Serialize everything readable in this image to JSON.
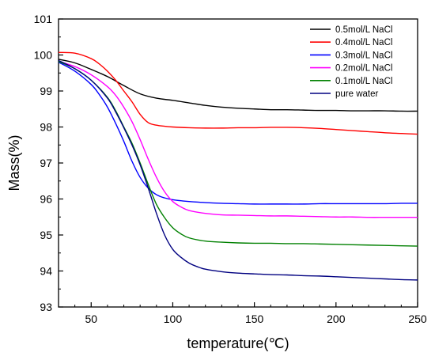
{
  "chart_data": {
    "type": "line",
    "xlabel": "temperature(℃)",
    "ylabel": "Mass(%)",
    "xlim": [
      30,
      250
    ],
    "ylim": [
      93,
      101
    ],
    "xticks": [
      50,
      100,
      150,
      200,
      250
    ],
    "yticks": [
      93,
      94,
      95,
      96,
      97,
      98,
      99,
      100,
      101
    ],
    "grid": false,
    "legend_position": "top-right",
    "series": [
      {
        "name": "0.5mol/L NaCl",
        "color": "#000000",
        "x": [
          30,
          40,
          50,
          60,
          70,
          80,
          90,
          100,
          110,
          120,
          130,
          140,
          150,
          160,
          170,
          180,
          190,
          200,
          210,
          220,
          230,
          240,
          250
        ],
        "y": [
          99.88,
          99.78,
          99.6,
          99.4,
          99.15,
          98.92,
          98.8,
          98.74,
          98.67,
          98.6,
          98.55,
          98.52,
          98.5,
          98.48,
          98.48,
          98.47,
          98.46,
          98.46,
          98.45,
          98.45,
          98.45,
          98.44,
          98.44
        ]
      },
      {
        "name": "0.4mol/L NaCl",
        "color": "#ff0000",
        "x": [
          30,
          40,
          50,
          55,
          60,
          65,
          70,
          75,
          80,
          85,
          90,
          95,
          100,
          110,
          120,
          130,
          140,
          150,
          160,
          170,
          180,
          190,
          200,
          210,
          220,
          230,
          240,
          250
        ],
        "y": [
          100.07,
          100.05,
          99.9,
          99.75,
          99.55,
          99.3,
          99.0,
          98.7,
          98.35,
          98.12,
          98.05,
          98.02,
          98.0,
          97.98,
          97.97,
          97.97,
          97.98,
          97.98,
          97.99,
          97.99,
          97.98,
          97.96,
          97.93,
          97.9,
          97.87,
          97.84,
          97.82,
          97.8
        ]
      },
      {
        "name": "0.3mol/L NaCl",
        "color": "#0000ff",
        "x": [
          30,
          40,
          50,
          55,
          60,
          65,
          70,
          75,
          80,
          85,
          90,
          95,
          100,
          110,
          120,
          130,
          140,
          150,
          160,
          170,
          180,
          190,
          200,
          210,
          220,
          230,
          240,
          250
        ],
        "y": [
          99.8,
          99.55,
          99.18,
          98.9,
          98.55,
          98.1,
          97.6,
          97.05,
          96.6,
          96.3,
          96.12,
          96.03,
          95.98,
          95.93,
          95.9,
          95.88,
          95.87,
          95.86,
          95.86,
          95.86,
          95.86,
          95.87,
          95.87,
          95.87,
          95.87,
          95.87,
          95.88,
          95.88
        ]
      },
      {
        "name": "0.2mol/L NaCl",
        "color": "#ff00ff",
        "x": [
          30,
          40,
          50,
          60,
          65,
          70,
          75,
          80,
          85,
          90,
          95,
          100,
          105,
          110,
          120,
          130,
          140,
          150,
          160,
          170,
          180,
          190,
          200,
          210,
          220,
          230,
          240,
          250
        ],
        "y": [
          99.82,
          99.68,
          99.45,
          99.12,
          98.88,
          98.55,
          98.15,
          97.65,
          97.1,
          96.6,
          96.2,
          95.93,
          95.78,
          95.68,
          95.6,
          95.56,
          95.55,
          95.54,
          95.53,
          95.53,
          95.52,
          95.51,
          95.5,
          95.5,
          95.49,
          95.49,
          95.49,
          95.49
        ]
      },
      {
        "name": "0.1mol/L NaCl",
        "color": "#008000",
        "x": [
          30,
          40,
          50,
          60,
          65,
          70,
          75,
          80,
          85,
          90,
          95,
          100,
          105,
          110,
          120,
          130,
          140,
          150,
          160,
          170,
          180,
          190,
          200,
          210,
          220,
          230,
          240,
          250
        ],
        "y": [
          99.82,
          99.62,
          99.3,
          98.82,
          98.45,
          98.0,
          97.55,
          97.0,
          96.4,
          95.85,
          95.48,
          95.2,
          95.03,
          94.92,
          94.83,
          94.8,
          94.78,
          94.77,
          94.77,
          94.76,
          94.76,
          94.75,
          94.74,
          94.73,
          94.72,
          94.71,
          94.7,
          94.69
        ]
      },
      {
        "name": "pure water",
        "color": "#000080",
        "x": [
          30,
          40,
          50,
          60,
          65,
          70,
          75,
          80,
          85,
          90,
          95,
          100,
          105,
          110,
          115,
          120,
          130,
          140,
          150,
          160,
          170,
          180,
          190,
          200,
          210,
          220,
          230,
          240,
          250
        ],
        "y": [
          99.85,
          99.62,
          99.3,
          98.8,
          98.42,
          97.98,
          97.5,
          96.95,
          96.3,
          95.6,
          95.0,
          94.6,
          94.38,
          94.22,
          94.12,
          94.05,
          93.98,
          93.94,
          93.92,
          93.9,
          93.89,
          93.87,
          93.86,
          93.84,
          93.82,
          93.8,
          93.78,
          93.76,
          93.75
        ]
      }
    ]
  }
}
